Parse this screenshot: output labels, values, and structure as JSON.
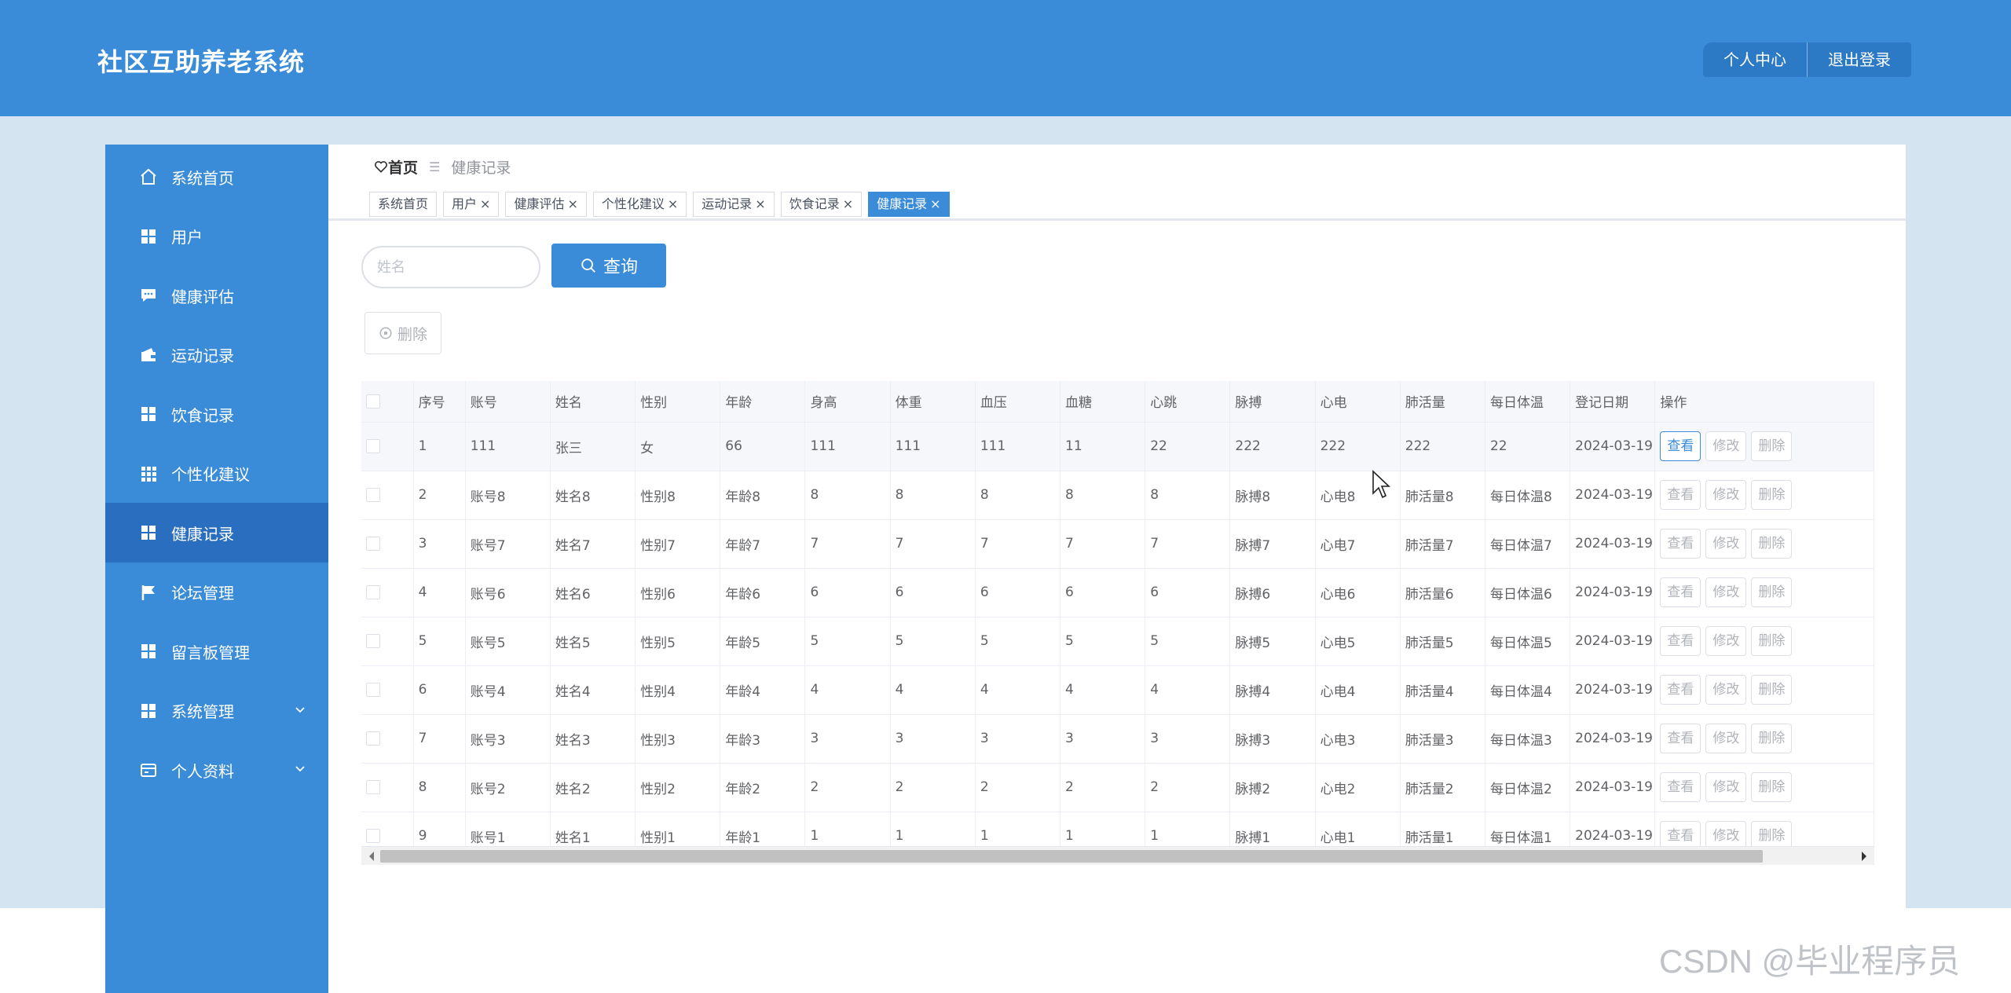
{
  "app": {
    "title": "社区互助养老系统"
  },
  "header": {
    "profile_label": "个人中心",
    "logout_label": "退出登录"
  },
  "sidebar": {
    "items": [
      {
        "label": "系统首页",
        "icon": "home-icon"
      },
      {
        "label": "用户",
        "icon": "grid-icon"
      },
      {
        "label": "健康评估",
        "icon": "chat-icon"
      },
      {
        "label": "运动记录",
        "icon": "wallet-icon"
      },
      {
        "label": "饮食记录",
        "icon": "grid-icon"
      },
      {
        "label": "个性化建议",
        "icon": "apps-icon"
      },
      {
        "label": "健康记录",
        "icon": "grid-icon",
        "active": true
      },
      {
        "label": "论坛管理",
        "icon": "flag-icon"
      },
      {
        "label": "留言板管理",
        "icon": "grid-icon"
      },
      {
        "label": "系统管理",
        "icon": "grid-icon",
        "expandable": true
      },
      {
        "label": "个人资料",
        "icon": "card-icon",
        "expandable": true
      }
    ]
  },
  "breadcrumb": {
    "home": "首页",
    "separator": "☰",
    "current": "健康记录"
  },
  "tabs": [
    {
      "label": "系统首页",
      "closable": false
    },
    {
      "label": "用户",
      "closable": true
    },
    {
      "label": "健康评估",
      "closable": true
    },
    {
      "label": "个性化建议",
      "closable": true
    },
    {
      "label": "运动记录",
      "closable": true
    },
    {
      "label": "饮食记录",
      "closable": true
    },
    {
      "label": "健康记录",
      "closable": true,
      "active": true
    }
  ],
  "search": {
    "placeholder": "姓名",
    "value": "",
    "button_label": "查询"
  },
  "toolbar": {
    "delete_label": "删除"
  },
  "table": {
    "columns": [
      "",
      "序号",
      "账号",
      "姓名",
      "性别",
      "年龄",
      "身高",
      "体重",
      "血压",
      "血糖",
      "心跳",
      "脉搏",
      "心电",
      "肺活量",
      "每日体温",
      "登记日期",
      "操作"
    ],
    "rows": [
      [
        "1",
        "111",
        "张三",
        "女",
        "66",
        "111",
        "111",
        "111",
        "11",
        "22",
        "222",
        "222",
        "222",
        "22",
        "2024-03-19"
      ],
      [
        "2",
        "账号8",
        "姓名8",
        "性别8",
        "年龄8",
        "8",
        "8",
        "8",
        "8",
        "8",
        "脉搏8",
        "心电8",
        "肺活量8",
        "每日体温8",
        "2024-03-19"
      ],
      [
        "3",
        "账号7",
        "姓名7",
        "性别7",
        "年龄7",
        "7",
        "7",
        "7",
        "7",
        "7",
        "脉搏7",
        "心电7",
        "肺活量7",
        "每日体温7",
        "2024-03-19"
      ],
      [
        "4",
        "账号6",
        "姓名6",
        "性别6",
        "年龄6",
        "6",
        "6",
        "6",
        "6",
        "6",
        "脉搏6",
        "心电6",
        "肺活量6",
        "每日体温6",
        "2024-03-19"
      ],
      [
        "5",
        "账号5",
        "姓名5",
        "性别5",
        "年龄5",
        "5",
        "5",
        "5",
        "5",
        "5",
        "脉搏5",
        "心电5",
        "肺活量5",
        "每日体温5",
        "2024-03-19"
      ],
      [
        "6",
        "账号4",
        "姓名4",
        "性别4",
        "年龄4",
        "4",
        "4",
        "4",
        "4",
        "4",
        "脉搏4",
        "心电4",
        "肺活量4",
        "每日体温4",
        "2024-03-19"
      ],
      [
        "7",
        "账号3",
        "姓名3",
        "性别3",
        "年龄3",
        "3",
        "3",
        "3",
        "3",
        "3",
        "脉搏3",
        "心电3",
        "肺活量3",
        "每日体温3",
        "2024-03-19"
      ],
      [
        "8",
        "账号2",
        "姓名2",
        "性别2",
        "年龄2",
        "2",
        "2",
        "2",
        "2",
        "2",
        "脉搏2",
        "心电2",
        "肺活量2",
        "每日体温2",
        "2024-03-19"
      ],
      [
        "9",
        "账号1",
        "姓名1",
        "性别1",
        "年龄1",
        "1",
        "1",
        "1",
        "1",
        "1",
        "脉搏1",
        "心电1",
        "肺活量1",
        "每日体温1",
        "2024-03-19"
      ]
    ],
    "actions": {
      "view": "查看",
      "edit": "修改",
      "delete": "删除"
    }
  },
  "watermark": "CSDN @毕业程序员",
  "colors": {
    "primary": "#3a8bd8",
    "sidebar_active": "#2a6fbf",
    "page_bg": "#d5e4f1"
  }
}
